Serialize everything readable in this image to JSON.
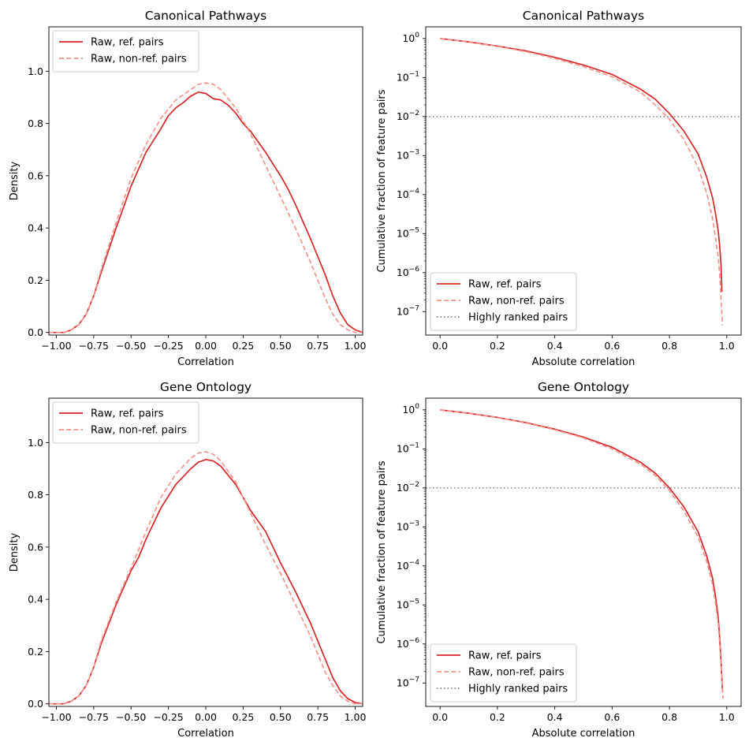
{
  "colors": {
    "ref": "#d62728",
    "nonref": "#f4948c",
    "threshold": "#7f7f7f"
  },
  "chart_data": [
    {
      "id": "cp-density",
      "type": "line",
      "title": "Canonical Pathways",
      "xlabel": "Correlation",
      "ylabel": "Density",
      "xlim": [
        -1.05,
        1.05
      ],
      "ylim": [
        -0.01,
        1.17
      ],
      "xticks": [
        -1.0,
        -0.75,
        -0.5,
        -0.25,
        0.0,
        0.25,
        0.5,
        0.75,
        1.0
      ],
      "xtick_labels": [
        "−1.00",
        "−0.75",
        "−0.50",
        "−0.25",
        "0.00",
        "0.25",
        "0.50",
        "0.75",
        "1.00"
      ],
      "yticks": [
        0.0,
        0.2,
        0.4,
        0.6,
        0.8,
        1.0
      ],
      "ytick_labels": [
        "0.0",
        "0.2",
        "0.4",
        "0.6",
        "0.8",
        "1.0"
      ],
      "y_scale": "linear",
      "legend": "upper-left",
      "series": [
        {
          "name": "Raw, ref. pairs",
          "style": "solid",
          "color_key": "ref",
          "x": [
            -1.05,
            -0.95,
            -0.9,
            -0.85,
            -0.8,
            -0.75,
            -0.7,
            -0.6,
            -0.5,
            -0.4,
            -0.3,
            -0.25,
            -0.2,
            -0.15,
            -0.1,
            -0.05,
            0.0,
            0.05,
            0.1,
            0.15,
            0.2,
            0.25,
            0.3,
            0.4,
            0.5,
            0.55,
            0.6,
            0.7,
            0.75,
            0.8,
            0.85,
            0.9,
            0.95,
            1.0,
            1.05
          ],
          "y": [
            0.0,
            0.0,
            0.01,
            0.03,
            0.07,
            0.14,
            0.23,
            0.4,
            0.56,
            0.69,
            0.78,
            0.83,
            0.86,
            0.88,
            0.905,
            0.92,
            0.915,
            0.895,
            0.89,
            0.87,
            0.84,
            0.8,
            0.77,
            0.69,
            0.6,
            0.55,
            0.49,
            0.36,
            0.29,
            0.22,
            0.14,
            0.075,
            0.03,
            0.01,
            0.0
          ]
        },
        {
          "name": "Raw, non-ref. pairs",
          "style": "dashed",
          "color_key": "nonref",
          "x": [
            -1.05,
            -0.95,
            -0.9,
            -0.85,
            -0.8,
            -0.75,
            -0.7,
            -0.6,
            -0.5,
            -0.4,
            -0.3,
            -0.2,
            -0.1,
            -0.05,
            0.0,
            0.05,
            0.1,
            0.2,
            0.3,
            0.4,
            0.5,
            0.6,
            0.7,
            0.75,
            0.8,
            0.85,
            0.9,
            0.95,
            1.0,
            1.05
          ],
          "y": [
            0.0,
            0.0,
            0.01,
            0.03,
            0.07,
            0.14,
            0.24,
            0.42,
            0.59,
            0.72,
            0.82,
            0.89,
            0.93,
            0.95,
            0.955,
            0.95,
            0.93,
            0.86,
            0.76,
            0.64,
            0.52,
            0.4,
            0.27,
            0.2,
            0.13,
            0.07,
            0.03,
            0.01,
            0.0,
            0.0
          ]
        }
      ]
    },
    {
      "id": "cp-cumulative",
      "type": "line",
      "title": "Canonical Pathways",
      "xlabel": "Absolute correlation",
      "ylabel": "Cumulative fraction of feature pairs",
      "xlim": [
        -0.05,
        1.05
      ],
      "y_scale": "log",
      "ylim_exp": [
        -7.6,
        0.3
      ],
      "xticks": [
        0.0,
        0.2,
        0.4,
        0.6,
        0.8,
        1.0
      ],
      "xtick_labels": [
        "0.0",
        "0.2",
        "0.4",
        "0.6",
        "0.8",
        "1.0"
      ],
      "ytick_exponents": [
        0,
        -1,
        -2,
        -3,
        -4,
        -5,
        -6,
        -7
      ],
      "tick_base": "10",
      "threshold": 0.01,
      "legend": "lower-left",
      "series": [
        {
          "name": "Raw, ref. pairs",
          "style": "solid",
          "color_key": "ref",
          "x": [
            0.0,
            0.1,
            0.2,
            0.3,
            0.4,
            0.5,
            0.6,
            0.7,
            0.75,
            0.8,
            0.85,
            0.9,
            0.93,
            0.95,
            0.96,
            0.97,
            0.975,
            0.98,
            0.983
          ],
          "y": [
            1.0,
            0.82,
            0.64,
            0.48,
            0.33,
            0.21,
            0.12,
            0.05,
            0.028,
            0.012,
            0.0043,
            0.0011,
            0.00028,
            8.5e-05,
            3.5e-05,
            1.2e-05,
            5e-06,
            1.5e-06,
            3.2e-07
          ]
        },
        {
          "name": "Raw, non-ref. pairs",
          "style": "dashed",
          "color_key": "nonref",
          "x": [
            0.0,
            0.1,
            0.2,
            0.3,
            0.4,
            0.5,
            0.6,
            0.7,
            0.75,
            0.8,
            0.85,
            0.9,
            0.93,
            0.95,
            0.96,
            0.97,
            0.975,
            0.98,
            0.985
          ],
          "y": [
            1.0,
            0.81,
            0.63,
            0.46,
            0.31,
            0.19,
            0.105,
            0.042,
            0.02,
            0.0085,
            0.0026,
            0.0005,
            0.00011,
            2.5e-05,
            8.5e-06,
            2.5e-06,
            9e-07,
            2.2e-07,
            4.5e-08
          ]
        },
        {
          "name": "Highly ranked pairs",
          "style": "dotted",
          "color_key": "threshold",
          "x": [],
          "y": []
        }
      ]
    },
    {
      "id": "go-density",
      "type": "line",
      "title": "Gene Ontology",
      "xlabel": "Correlation",
      "ylabel": "Density",
      "xlim": [
        -1.05,
        1.05
      ],
      "ylim": [
        -0.01,
        1.17
      ],
      "xticks": [
        -1.0,
        -0.75,
        -0.5,
        -0.25,
        0.0,
        0.25,
        0.5,
        0.75,
        1.0
      ],
      "xtick_labels": [
        "−1.00",
        "−0.75",
        "−0.50",
        "−0.25",
        "0.00",
        "0.25",
        "0.50",
        "0.75",
        "1.00"
      ],
      "yticks": [
        0.0,
        0.2,
        0.4,
        0.6,
        0.8,
        1.0
      ],
      "ytick_labels": [
        "0.0",
        "0.2",
        "0.4",
        "0.6",
        "0.8",
        "1.0"
      ],
      "y_scale": "linear",
      "legend": "upper-left",
      "series": [
        {
          "name": "Raw, ref. pairs",
          "style": "solid",
          "color_key": "ref",
          "x": [
            -1.05,
            -0.95,
            -0.9,
            -0.85,
            -0.8,
            -0.75,
            -0.7,
            -0.6,
            -0.5,
            -0.45,
            -0.4,
            -0.3,
            -0.2,
            -0.1,
            -0.05,
            0.0,
            0.05,
            0.1,
            0.2,
            0.3,
            0.4,
            0.45,
            0.5,
            0.6,
            0.7,
            0.75,
            0.8,
            0.85,
            0.9,
            0.95,
            1.0,
            1.05
          ],
          "y": [
            0.0,
            0.0,
            0.01,
            0.03,
            0.07,
            0.14,
            0.23,
            0.38,
            0.51,
            0.56,
            0.63,
            0.75,
            0.84,
            0.9,
            0.925,
            0.935,
            0.93,
            0.91,
            0.84,
            0.74,
            0.66,
            0.6,
            0.54,
            0.43,
            0.31,
            0.24,
            0.17,
            0.1,
            0.05,
            0.02,
            0.005,
            0.0
          ]
        },
        {
          "name": "Raw, non-ref. pairs",
          "style": "dashed",
          "color_key": "nonref",
          "x": [
            -1.05,
            -0.95,
            -0.9,
            -0.85,
            -0.8,
            -0.75,
            -0.7,
            -0.6,
            -0.5,
            -0.4,
            -0.3,
            -0.2,
            -0.1,
            -0.05,
            0.0,
            0.05,
            0.1,
            0.2,
            0.3,
            0.4,
            0.5,
            0.6,
            0.7,
            0.75,
            0.8,
            0.85,
            0.9,
            0.95,
            1.0,
            1.05
          ],
          "y": [
            0.0,
            0.0,
            0.01,
            0.03,
            0.07,
            0.14,
            0.24,
            0.39,
            0.52,
            0.66,
            0.79,
            0.88,
            0.94,
            0.96,
            0.965,
            0.955,
            0.93,
            0.85,
            0.73,
            0.61,
            0.5,
            0.38,
            0.26,
            0.19,
            0.12,
            0.07,
            0.03,
            0.01,
            0.0,
            0.0
          ]
        }
      ]
    },
    {
      "id": "go-cumulative",
      "type": "line",
      "title": "Gene Ontology",
      "xlabel": "Absolute correlation",
      "ylabel": "Cumulative fraction of feature pairs",
      "xlim": [
        -0.05,
        1.05
      ],
      "y_scale": "log",
      "ylim_exp": [
        -7.6,
        0.3
      ],
      "xticks": [
        0.0,
        0.2,
        0.4,
        0.6,
        0.8,
        1.0
      ],
      "xtick_labels": [
        "0.0",
        "0.2",
        "0.4",
        "0.6",
        "0.8",
        "1.0"
      ],
      "ytick_exponents": [
        0,
        -1,
        -2,
        -3,
        -4,
        -5,
        -6,
        -7
      ],
      "tick_base": "10",
      "threshold": 0.01,
      "legend": "lower-left",
      "series": [
        {
          "name": "Raw, ref. pairs",
          "style": "solid",
          "color_key": "ref",
          "x": [
            0.0,
            0.1,
            0.2,
            0.3,
            0.4,
            0.5,
            0.6,
            0.7,
            0.75,
            0.8,
            0.85,
            0.9,
            0.93,
            0.95,
            0.96,
            0.97,
            0.975,
            0.98,
            0.985
          ],
          "y": [
            1.0,
            0.82,
            0.64,
            0.47,
            0.32,
            0.2,
            0.11,
            0.045,
            0.024,
            0.01,
            0.0033,
            0.00075,
            0.00018,
            5e-05,
            1.8e-05,
            5e-06,
            1.5e-06,
            3.5e-07,
            6e-08
          ]
        },
        {
          "name": "Raw, non-ref. pairs",
          "style": "dashed",
          "color_key": "nonref",
          "x": [
            0.0,
            0.1,
            0.2,
            0.3,
            0.4,
            0.5,
            0.6,
            0.7,
            0.75,
            0.8,
            0.85,
            0.9,
            0.93,
            0.95,
            0.96,
            0.97,
            0.975,
            0.98,
            0.987
          ],
          "y": [
            1.0,
            0.81,
            0.63,
            0.46,
            0.31,
            0.19,
            0.1,
            0.04,
            0.021,
            0.0085,
            0.0026,
            0.00055,
            0.00013,
            3.5e-05,
            1.2e-05,
            3.5e-06,
            1.1e-06,
            2.8e-07,
            4e-08
          ]
        },
        {
          "name": "Highly ranked pairs",
          "style": "dotted",
          "color_key": "threshold",
          "x": [],
          "y": []
        }
      ]
    }
  ]
}
